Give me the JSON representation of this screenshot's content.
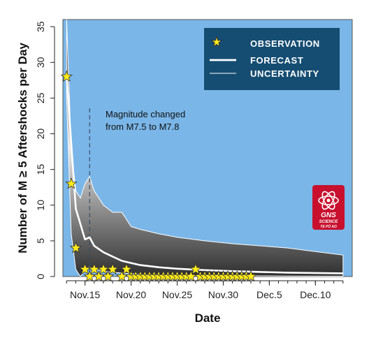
{
  "chart_data": {
    "type": "line",
    "title": "",
    "xlabel": "Date",
    "ylabel": "Number of M ≥ 5 Aftershocks per Day",
    "ylim": [
      0,
      36
    ],
    "yticks": [
      0,
      5,
      10,
      15,
      20,
      25,
      30,
      35
    ],
    "x_start_date": "2016-11-13",
    "xlim_days": [
      -0.4,
      31
    ],
    "xticks": [
      {
        "day": 2,
        "label": "Nov.15"
      },
      {
        "day": 7,
        "label": "Nov.20"
      },
      {
        "day": 12,
        "label": "Nov.25"
      },
      {
        "day": 17,
        "label": "Nov.30"
      },
      {
        "day": 22,
        "label": "Dec.5"
      },
      {
        "day": 27,
        "label": "Dec.10"
      }
    ],
    "grid": false,
    "legend_position": "top-right",
    "colors": {
      "background": "#7ab6e8",
      "legend_bg": "#154d72",
      "star": "#ffeb1a",
      "forecast": "#ffffff",
      "band_inner": "#e6e6e6",
      "band_outer": "#3a3a3a",
      "logo": "#c8102e"
    },
    "series": [
      {
        "name": "OBSERVATION",
        "kind": "stars",
        "x": [
          0,
          0.5,
          1,
          2,
          2.5,
          3,
          3.5,
          4,
          4.5,
          5,
          6,
          6.5,
          7,
          7.5,
          8,
          8.5,
          9,
          9.5,
          10,
          10.5,
          11,
          11.5,
          12,
          12.5,
          13,
          13.5,
          14,
          14.5,
          15,
          15.5,
          16,
          16.5,
          17,
          17.5,
          18,
          18.5,
          19,
          19.5,
          20
        ],
        "values": [
          28,
          13,
          4,
          1,
          0,
          1,
          0,
          1,
          0,
          1,
          0,
          1,
          0,
          0,
          0,
          0,
          0,
          0,
          0,
          0,
          0,
          0,
          0,
          0,
          0,
          0,
          1,
          0,
          0,
          0,
          0,
          0,
          0,
          0,
          0,
          0,
          0,
          0,
          0
        ]
      },
      {
        "name": "FORECAST",
        "kind": "line",
        "x": [
          0,
          1,
          2,
          2.5,
          3,
          4,
          5,
          6,
          7,
          8,
          10,
          12,
          15,
          18,
          21,
          24,
          27,
          30
        ],
        "values": [
          28,
          9.5,
          5.2,
          5.5,
          4.3,
          3.4,
          2.8,
          2.2,
          1.9,
          1.6,
          1.3,
          1.1,
          0.9,
          0.75,
          0.65,
          0.55,
          0.5,
          0.45
        ]
      },
      {
        "name": "UNCERTAINTY",
        "kind": "band",
        "x": [
          0,
          0.5,
          1,
          1.5,
          2,
          2.5,
          3,
          4,
          5,
          6,
          7,
          8,
          10,
          12,
          15,
          18,
          21,
          24,
          27,
          30
        ],
        "upper": [
          36,
          18,
          12,
          11,
          13,
          14,
          12,
          10,
          9,
          9,
          7,
          6.6,
          6,
          5.5,
          5,
          4.6,
          4.3,
          4,
          3.5,
          3
        ],
        "lower": [
          25,
          6,
          1,
          0,
          1,
          1.3,
          1,
          0.8,
          0.6,
          0.5,
          0.4,
          0.3,
          0.25,
          0.2,
          0.15,
          0.12,
          0.1,
          0.08,
          0.06,
          0.05
        ]
      }
    ],
    "annotations": [
      {
        "type": "vline",
        "x": 2.5,
        "style": "dashed"
      },
      {
        "type": "text",
        "line1": "Magnitude changed",
        "line2": "from M7.5 to M7.8"
      }
    ],
    "legend": {
      "observation": "OBSERVATION",
      "forecast": "FORECAST",
      "uncertainty": "UNCERTAINTY"
    },
    "logo": {
      "line1": "GNS",
      "line2": "SCIENCE",
      "line3": "TE PŪ AO"
    }
  }
}
